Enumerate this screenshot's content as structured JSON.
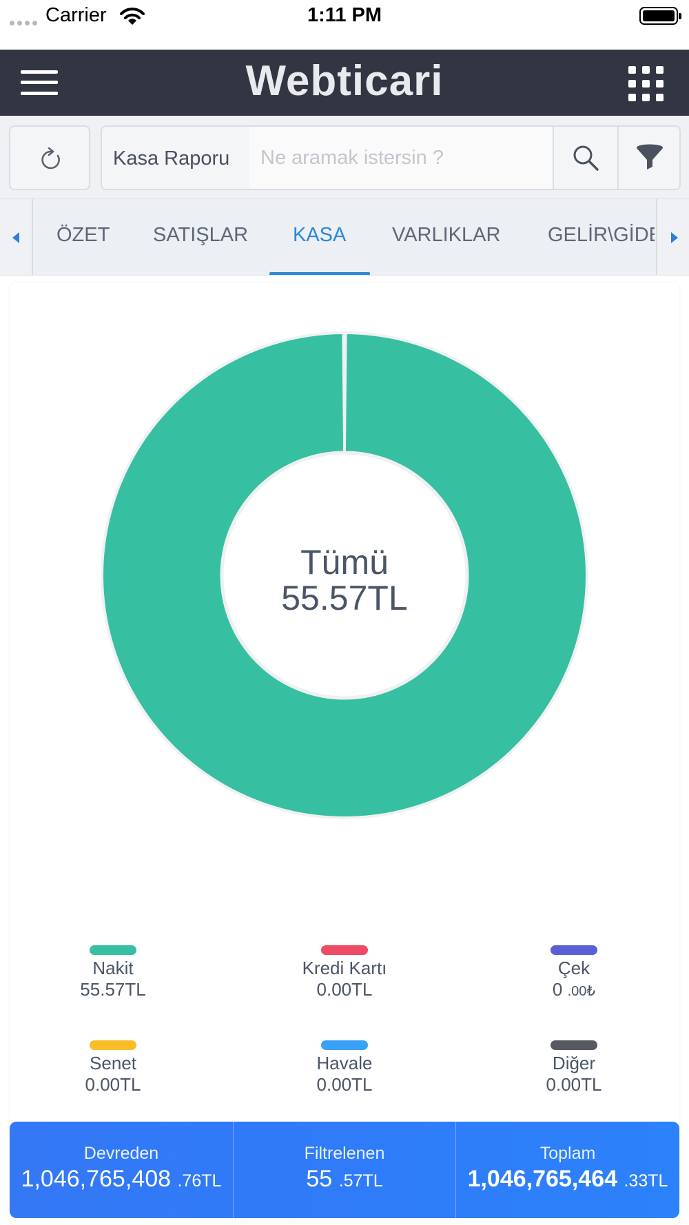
{
  "status_bar": {
    "carrier": "Carrier",
    "time": "1:11 PM"
  },
  "header": {
    "logo_text": "Webticari"
  },
  "toolbar": {
    "report_label": "Kasa Raporu",
    "search_placeholder": "Ne aramak istersin ?"
  },
  "tabs": [
    {
      "label": "ÖZET",
      "active": false
    },
    {
      "label": "SATIŞLAR",
      "active": false
    },
    {
      "label": "KASA",
      "active": true
    },
    {
      "label": "VARLIKLAR",
      "active": false
    },
    {
      "label": "GELİR\\GİDER",
      "active": false
    }
  ],
  "chart_data": {
    "type": "pie",
    "variant": "donut",
    "center_label": "Tümü",
    "center_value": "55.57TL",
    "slices": [
      {
        "name": "Nakit",
        "value": 55.57,
        "color": "#36bfa1"
      },
      {
        "name": "Kredi Kartı",
        "value": 0.0,
        "color": "#ef4a63"
      },
      {
        "name": "Çek",
        "value": 0.0,
        "color": "#5a5fd8"
      },
      {
        "name": "Senet",
        "value": 0.0,
        "color": "#fbbd27"
      },
      {
        "name": "Havale",
        "value": 0.0,
        "color": "#3aa1f7"
      },
      {
        "name": "Diğer",
        "value": 0.0,
        "color": "#565862"
      }
    ]
  },
  "legend": [
    {
      "name": "Nakit",
      "value_text": "55.57TL",
      "color": "#36bfa1"
    },
    {
      "name": "Kredi Kartı",
      "value_text": "0.00TL",
      "color": "#ef4a63"
    },
    {
      "name": "Çek",
      "value_int": "0 ",
      "value_dec": ".00₺",
      "color": "#5a5fd8"
    },
    {
      "name": "Senet",
      "value_text": "0.00TL",
      "color": "#fbbd27"
    },
    {
      "name": "Havale",
      "value_text": "0.00TL",
      "color": "#3aa1f7"
    },
    {
      "name": "Diğer",
      "value_text": "0.00TL",
      "color": "#565862"
    }
  ],
  "totals": [
    {
      "label": "Devreden",
      "int": "1,046,765,408",
      "dec": ".76TL"
    },
    {
      "label": "Filtrelenen",
      "int": "55",
      "dec": ".57TL"
    },
    {
      "label": "Toplam",
      "int": "1,046,765,464",
      "dec": ".33TL"
    }
  ],
  "colors": {
    "header_bg": "#323643",
    "accent": "#2b88d8",
    "totals_bg": "#3078f7"
  }
}
